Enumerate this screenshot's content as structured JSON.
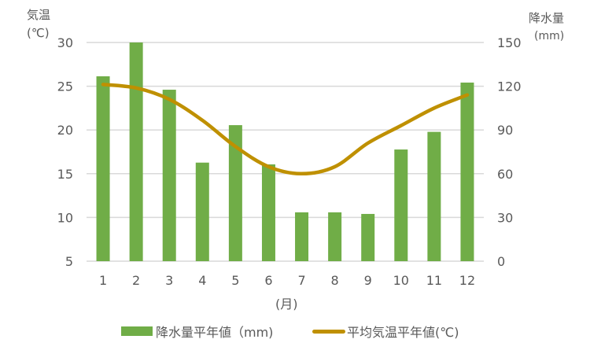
{
  "chart_data": {
    "type": "bar+line",
    "title": "",
    "categories": [
      "1",
      "2",
      "3",
      "4",
      "5",
      "6",
      "7",
      "8",
      "9",
      "10",
      "11",
      "12"
    ],
    "xlabel": "(月)",
    "y_left": {
      "label_line1": "気温",
      "label_line2": "(℃)",
      "range": [
        5,
        30
      ],
      "ticks": [
        5,
        10,
        15,
        20,
        25,
        30
      ]
    },
    "y_right": {
      "label_line1": "降水量",
      "label_line2": "(mm)",
      "range": [
        0,
        150
      ],
      "ticks": [
        0,
        30,
        60,
        90,
        120,
        150
      ]
    },
    "grid": true,
    "legend_position": "bottom",
    "series": [
      {
        "name": "降水量平年値（mm)",
        "type": "bar",
        "axis": "right",
        "color": "#70AD47",
        "values": [
          126.8,
          150.0,
          117.6,
          67.6,
          93.3,
          66.4,
          33.5,
          33.5,
          32.4,
          76.6,
          88.7,
          122.5
        ]
      },
      {
        "name": "平均気温平年値(℃)",
        "type": "line",
        "axis": "left",
        "color": "#BF9000",
        "values": [
          25.2,
          24.8,
          23.5,
          21.1,
          18.1,
          15.8,
          15.0,
          15.8,
          18.5,
          20.5,
          22.5,
          24.0
        ]
      }
    ]
  },
  "axes": {
    "left_title_1": "気温",
    "left_title_2": "(℃)",
    "right_title_1": "降水量",
    "right_title_2": "(mm)",
    "x_title": "(月)"
  },
  "legend": {
    "bar_label": "降水量平年値（mm)",
    "line_label": "平均気温平年値(℃)"
  }
}
